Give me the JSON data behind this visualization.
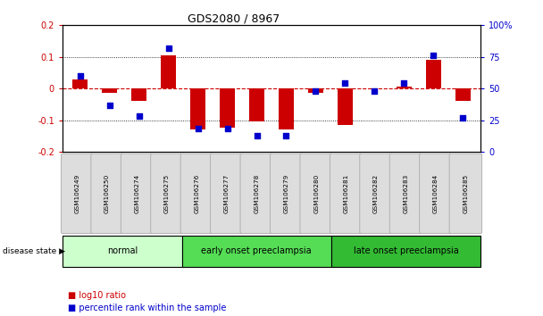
{
  "title": "GDS2080 / 8967",
  "samples": [
    "GSM106249",
    "GSM106250",
    "GSM106274",
    "GSM106275",
    "GSM106276",
    "GSM106277",
    "GSM106278",
    "GSM106279",
    "GSM106280",
    "GSM106281",
    "GSM106282",
    "GSM106283",
    "GSM106284",
    "GSM106285"
  ],
  "log10_ratio": [
    0.03,
    -0.015,
    -0.04,
    0.105,
    -0.13,
    -0.125,
    -0.105,
    -0.13,
    -0.015,
    -0.115,
    0.0,
    0.005,
    0.09,
    -0.04
  ],
  "percentile_rank": [
    60,
    37,
    28,
    82,
    18,
    18,
    13,
    13,
    48,
    54,
    48,
    54,
    76,
    27
  ],
  "groups": [
    {
      "label": "normal",
      "start": 0,
      "end": 4,
      "color": "#ccffcc"
    },
    {
      "label": "early onset preeclampsia",
      "start": 4,
      "end": 9,
      "color": "#55dd55"
    },
    {
      "label": "late onset preeclampsia",
      "start": 9,
      "end": 14,
      "color": "#33bb33"
    }
  ],
  "ylim_left": [
    -0.2,
    0.2
  ],
  "ylim_right": [
    0,
    100
  ],
  "yticks_left": [
    -0.2,
    -0.1,
    0.0,
    0.1,
    0.2
  ],
  "ytick_labels_left": [
    "-0.2",
    "-0.1",
    "0",
    "0.1",
    "0.2"
  ],
  "yticks_right": [
    0,
    25,
    50,
    75,
    100
  ],
  "ytick_labels_right": [
    "0",
    "25",
    "50",
    "75",
    "100%"
  ],
  "bar_color": "#cc0000",
  "dot_color": "#0000cc",
  "legend_log10": "log10 ratio",
  "legend_percentile": "percentile rank within the sample",
  "disease_state_label": "disease state"
}
